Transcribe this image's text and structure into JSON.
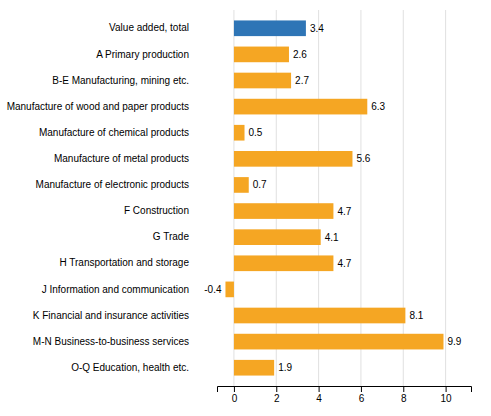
{
  "chart_data": {
    "type": "bar",
    "orientation": "horizontal",
    "categories": [
      "Value added, total",
      "A Primary production",
      "B-E Manufacturing, mining etc.",
      "Manufacture of wood and paper products",
      "Manufacture of chemical products",
      "Manufacture of metal products",
      "Manufacture of electronic products",
      "F Construction",
      "G Trade",
      "H Transportation and storage",
      "J Information and communication",
      "K Financial and insurance activities",
      "M-N Business-to-business services",
      "O-Q Education, health etc."
    ],
    "values": [
      3.4,
      2.6,
      2.7,
      6.3,
      0.5,
      5.6,
      0.7,
      4.7,
      4.1,
      4.7,
      -0.4,
      8.1,
      9.9,
      1.9
    ],
    "colors": [
      "#2e75b6",
      "#f5a623",
      "#f5a623",
      "#f5a623",
      "#f5a623",
      "#f5a623",
      "#f5a623",
      "#f5a623",
      "#f5a623",
      "#f5a623",
      "#f5a623",
      "#f5a623",
      "#f5a623",
      "#f5a623"
    ],
    "xlim": [
      -0.8,
      11.2
    ],
    "xticks": [
      0,
      2,
      4,
      6,
      8,
      10
    ],
    "grid": true,
    "data_labels": true
  }
}
